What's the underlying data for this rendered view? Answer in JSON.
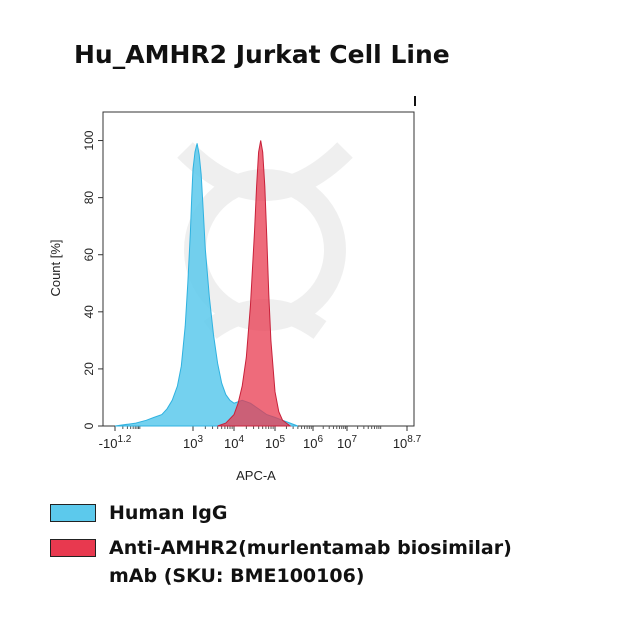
{
  "chart_data": {
    "type": "area",
    "title": "Hu_AMHR2 Jurkat Cell Line",
    "xlabel": "APC-A",
    "ylabel": "Count [%]",
    "x_scale": "biexponential-log",
    "xlim": [
      -10,
      501187
    ],
    "ylim": [
      0,
      110
    ],
    "y_ticks": [
      "0",
      "20",
      "40",
      "60",
      "80",
      "100"
    ],
    "x_ticks": [
      {
        "base": "-10",
        "exp": "1.2"
      },
      {
        "base": "10",
        "exp": "3"
      },
      {
        "base": "10",
        "exp": "4"
      },
      {
        "base": "10",
        "exp": "5"
      },
      {
        "base": "10",
        "exp": "6"
      },
      {
        "base": "10",
        "exp": "7"
      },
      {
        "base": "10",
        "exp": "8.7"
      }
    ],
    "series": [
      {
        "name": "Human IgG",
        "color": "#5cc9ec",
        "x_log": [
          0.0,
          0.8,
          1.2,
          1.5,
          1.8,
          2.0,
          2.2,
          2.4,
          2.55,
          2.7,
          2.8,
          2.9,
          2.95,
          3.0,
          3.05,
          3.1,
          3.15,
          3.2,
          3.25,
          3.3,
          3.4,
          3.5,
          3.6,
          3.7,
          3.8,
          3.9,
          4.0,
          4.2,
          4.4,
          4.6,
          4.8,
          5.0,
          5.2,
          5.4,
          5.6
        ],
        "y": [
          0,
          1,
          2,
          3,
          4,
          6,
          9,
          14,
          21,
          35,
          50,
          68,
          80,
          90,
          96,
          99,
          95,
          88,
          75,
          62,
          45,
          32,
          22,
          15,
          11,
          9,
          8,
          9,
          8,
          6,
          4,
          3,
          2,
          1,
          0
        ]
      },
      {
        "name": "Anti-AMHR2(murlentamab biosimilar) mAb (SKU: BME100106)",
        "color": "#e8394f",
        "x_log": [
          3.6,
          3.8,
          4.0,
          4.1,
          4.2,
          4.3,
          4.4,
          4.5,
          4.55,
          4.6,
          4.65,
          4.7,
          4.75,
          4.8,
          4.85,
          4.9,
          5.0,
          5.1,
          5.2,
          5.3,
          5.4
        ],
        "y": [
          0,
          1,
          4,
          8,
          14,
          24,
          42,
          68,
          84,
          96,
          100,
          96,
          84,
          66,
          46,
          30,
          12,
          5,
          2,
          1,
          0
        ]
      }
    ],
    "legend": [
      {
        "label": "Human IgG",
        "color": "#5cc9ec"
      },
      {
        "label": "Anti-AMHR2(murlentamab biosimilar)",
        "label2": "mAb (SKU: BME100106)",
        "color": "#e8394f"
      }
    ]
  }
}
